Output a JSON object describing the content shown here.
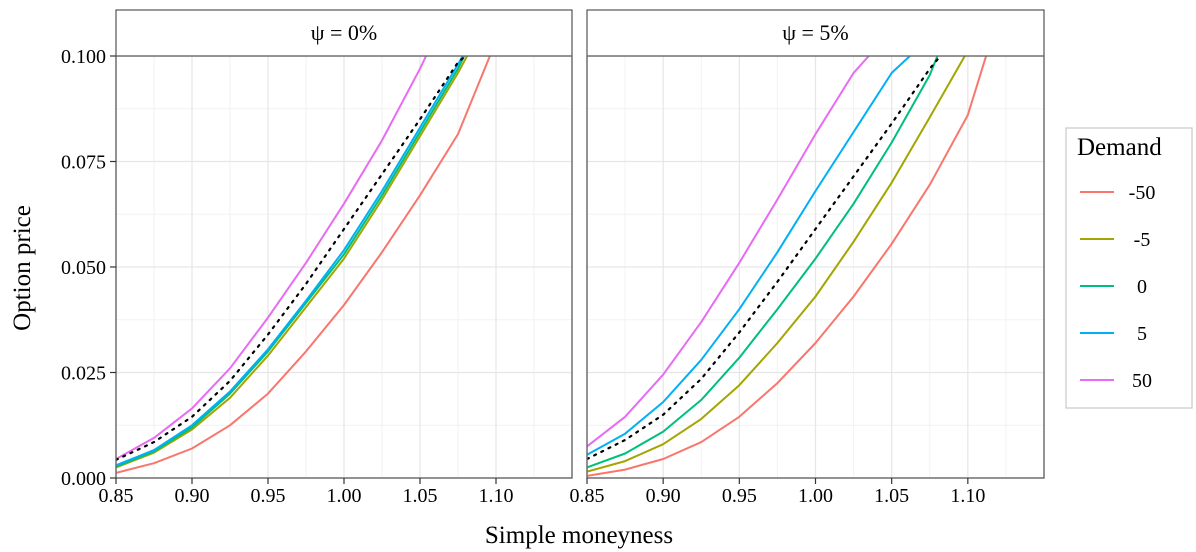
{
  "chart_data": {
    "type": "line",
    "xlabel": "Simple moneyness",
    "ylabel": "Option price",
    "xlim": [
      0.85,
      1.15
    ],
    "ylim": [
      0,
      0.1
    ],
    "x_ticks": [
      "0.85",
      "0.90",
      "0.95",
      "1.00",
      "1.05",
      "1.10"
    ],
    "y_ticks": [
      "0.000",
      "0.025",
      "0.050",
      "0.075",
      "0.100"
    ],
    "grid": true,
    "legend": {
      "title": "Demand",
      "position": "right",
      "entries": [
        "-50",
        "-5",
        "0",
        "5",
        "50"
      ]
    },
    "colors": {
      "-50": "#F8766D",
      "-5": "#A3A500",
      "0": "#00BF7D",
      "5": "#00B0F6",
      "50": "#E76BF3",
      "reference": "#000000"
    },
    "panels": [
      {
        "strip": "ψ = 0%",
        "reference": {
          "style": "dotted",
          "x": [
            0.85,
            0.875,
            0.9,
            0.925,
            0.95,
            0.975,
            1.0,
            1.025,
            1.05,
            1.075,
            1.08
          ],
          "y": [
            0.0043,
            0.0085,
            0.0145,
            0.023,
            0.034,
            0.046,
            0.059,
            0.072,
            0.085,
            0.0985,
            0.1
          ]
        },
        "series": [
          {
            "name": "-50",
            "x": [
              0.85,
              0.875,
              0.9,
              0.925,
              0.95,
              0.975,
              1.0,
              1.025,
              1.05,
              1.075,
              1.096
            ],
            "y": [
              0.0012,
              0.0035,
              0.007,
              0.0125,
              0.02,
              0.03,
              0.041,
              0.0535,
              0.067,
              0.0815,
              0.1
            ]
          },
          {
            "name": "-5",
            "x": [
              0.85,
              0.875,
              0.9,
              0.925,
              0.95,
              0.975,
              1.0,
              1.025,
              1.05,
              1.075,
              1.081
            ],
            "y": [
              0.0025,
              0.006,
              0.0115,
              0.019,
              0.029,
              0.0405,
              0.052,
              0.066,
              0.081,
              0.096,
              0.1
            ]
          },
          {
            "name": "0",
            "x": [
              0.85,
              0.875,
              0.9,
              0.925,
              0.95,
              0.975,
              1.0,
              1.025,
              1.05,
              1.075,
              1.079
            ],
            "y": [
              0.0027,
              0.0063,
              0.012,
              0.02,
              0.03,
              0.0415,
              0.053,
              0.067,
              0.082,
              0.097,
              0.1
            ]
          },
          {
            "name": "5",
            "x": [
              0.85,
              0.875,
              0.9,
              0.925,
              0.95,
              0.975,
              1.0,
              1.025,
              1.05,
              1.075,
              1.078
            ],
            "y": [
              0.003,
              0.0066,
              0.0125,
              0.0205,
              0.0305,
              0.042,
              0.054,
              0.068,
              0.083,
              0.098,
              0.1
            ]
          },
          {
            "name": "50",
            "x": [
              0.85,
              0.875,
              0.9,
              0.925,
              0.95,
              0.975,
              1.0,
              1.025,
              1.05,
              1.054
            ],
            "y": [
              0.0045,
              0.0095,
              0.0165,
              0.026,
              0.038,
              0.051,
              0.065,
              0.08,
              0.097,
              0.1
            ]
          }
        ]
      },
      {
        "strip": "ψ = 5%",
        "reference": {
          "style": "dotted",
          "x": [
            0.85,
            0.875,
            0.9,
            0.925,
            0.95,
            0.975,
            1.0,
            1.025,
            1.05,
            1.075,
            1.082
          ],
          "y": [
            0.0045,
            0.009,
            0.015,
            0.0235,
            0.0345,
            0.0465,
            0.059,
            0.0715,
            0.084,
            0.097,
            0.1
          ]
        },
        "series": [
          {
            "name": "-50",
            "x": [
              0.85,
              0.875,
              0.9,
              0.925,
              0.95,
              0.975,
              1.0,
              1.025,
              1.05,
              1.075,
              1.1,
              1.112
            ],
            "y": [
              0.0005,
              0.002,
              0.0045,
              0.0085,
              0.0145,
              0.0225,
              0.032,
              0.043,
              0.0555,
              0.0695,
              0.086,
              0.1
            ]
          },
          {
            "name": "-5",
            "x": [
              0.85,
              0.875,
              0.9,
              0.925,
              0.95,
              0.975,
              1.0,
              1.025,
              1.05,
              1.075,
              1.098
            ],
            "y": [
              0.0015,
              0.004,
              0.008,
              0.014,
              0.022,
              0.032,
              0.043,
              0.056,
              0.07,
              0.0855,
              0.1
            ]
          },
          {
            "name": "0",
            "x": [
              0.85,
              0.875,
              0.9,
              0.925,
              0.95,
              0.975,
              1.0,
              1.025,
              1.05,
              1.075,
              1.08
            ],
            "y": [
              0.0025,
              0.0058,
              0.011,
              0.0185,
              0.0285,
              0.04,
              0.052,
              0.065,
              0.0795,
              0.0955,
              0.1
            ]
          },
          {
            "name": "5",
            "x": [
              0.85,
              0.875,
              0.9,
              0.925,
              0.95,
              0.975,
              1.0,
              1.025,
              1.05,
              1.062
            ],
            "y": [
              0.0055,
              0.0105,
              0.018,
              0.028,
              0.04,
              0.0535,
              0.068,
              0.082,
              0.096,
              0.1
            ]
          },
          {
            "name": "50",
            "x": [
              0.85,
              0.875,
              0.9,
              0.925,
              0.95,
              0.975,
              1.0,
              1.025,
              1.035
            ],
            "y": [
              0.0075,
              0.0145,
              0.0245,
              0.037,
              0.051,
              0.066,
              0.0815,
              0.096,
              0.1
            ]
          }
        ]
      }
    ]
  }
}
